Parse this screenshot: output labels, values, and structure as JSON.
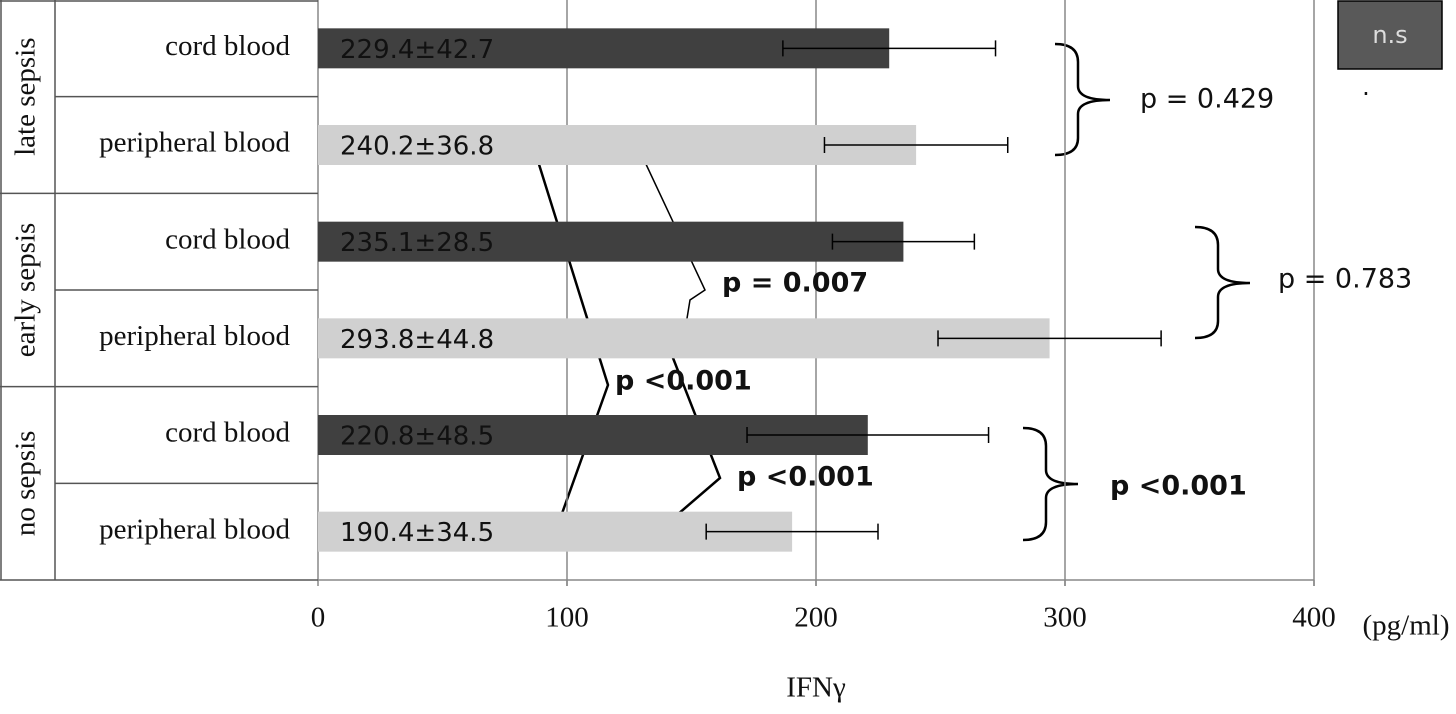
{
  "chart_data": {
    "type": "bar",
    "orientation": "horizontal",
    "groups": [
      "late sepsis",
      "early sepsis",
      "no sepsis"
    ],
    "categories": [
      "cord blood",
      "peripheral blood",
      "cord blood",
      "peripheral blood",
      "cord blood",
      "peripheral blood"
    ],
    "values": [
      229.4,
      240.2,
      235.1,
      293.8,
      220.8,
      190.4
    ],
    "errors": [
      42.7,
      36.8,
      28.5,
      44.8,
      48.5,
      34.5
    ],
    "value_labels": [
      "229.4±42.7",
      "240.2±36.8",
      "235.1±28.5",
      "293.8±44.8",
      "220.8±48.5",
      "190.4±34.5"
    ],
    "colors": [
      "#404040",
      "#d0d0d0",
      "#404040",
      "#d0d0d0",
      "#404040",
      "#d0d0d0"
    ],
    "xlim": [
      0,
      400
    ],
    "xticks": [
      0,
      100,
      200,
      300,
      400
    ],
    "grid": true,
    "xlabel": "IFNγ",
    "xunit": "(pg/ml)",
    "legend": {
      "label": "n.s",
      "note": ".",
      "color": "#595959"
    },
    "annotations": [
      "p = 0.429",
      "p = 0.783",
      "p <0.001",
      "p = 0.007",
      "p <0.001",
      "p <0.001"
    ]
  }
}
